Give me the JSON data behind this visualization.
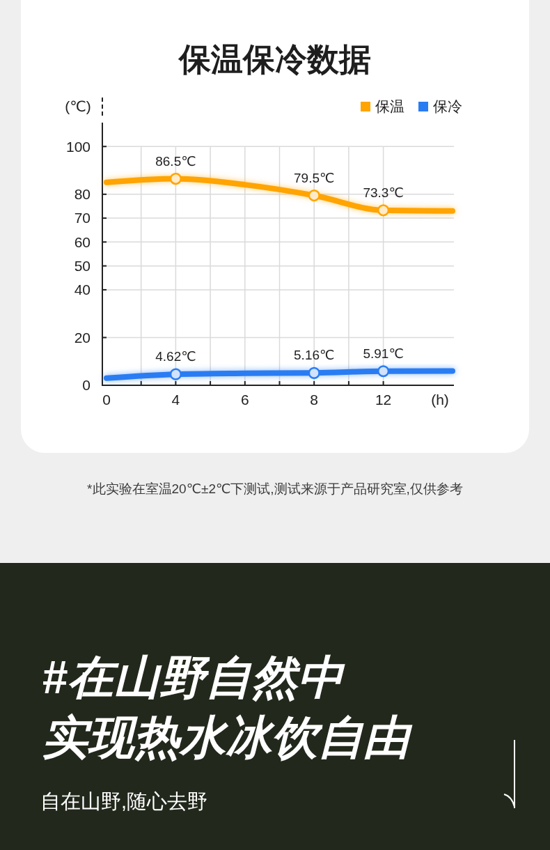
{
  "chart_data": [
    {
      "type": "line",
      "title": "保温保冷数据",
      "xlabel": "(h)",
      "ylabel": "(℃)",
      "categories": [
        "0",
        "4",
        "6",
        "8",
        "12",
        null
      ],
      "ylim": [
        0,
        110
      ],
      "yticks": [
        0,
        20,
        40,
        50,
        60,
        70,
        80,
        100
      ],
      "grid": true,
      "legend": "top right",
      "series": [
        {
          "type": "line",
          "name": "保温",
          "color": "#ffa400",
          "values": [
            85,
            86.5,
            84,
            79.5,
            73.3,
            73
          ]
        },
        {
          "type": "scatter",
          "color": "#ffa400",
          "marker": "circle",
          "x": [
            "4",
            "8",
            "12"
          ],
          "values": [
            86.5,
            79.5,
            73.3
          ],
          "value_labels": [
            "86.5℃",
            "79.5℃",
            "73.3℃"
          ]
        },
        {
          "type": "line",
          "name": "保冷",
          "color": "#2a7cf3",
          "values": [
            3,
            4.6,
            5,
            5.2,
            5.9,
            6
          ]
        },
        {
          "type": "scatter",
          "color": "#2a7cf3",
          "marker": "circle",
          "x": [
            "4",
            "8",
            "12"
          ],
          "values": [
            4.62,
            5.16,
            5.91
          ],
          "value_labels": [
            "4.62℃",
            "5.16℃",
            "5.91℃"
          ]
        }
      ],
      "annotations": [
        "*此实验在室温20℃±2℃下测试,测试来源于产品研究室,仅供参考"
      ]
    },
    {
      "type": "other",
      "title": "#在山野自然中",
      "subtitle": "实现热水冰饮自由",
      "annotations": [
        "自在山野,随心去野"
      ]
    }
  ]
}
